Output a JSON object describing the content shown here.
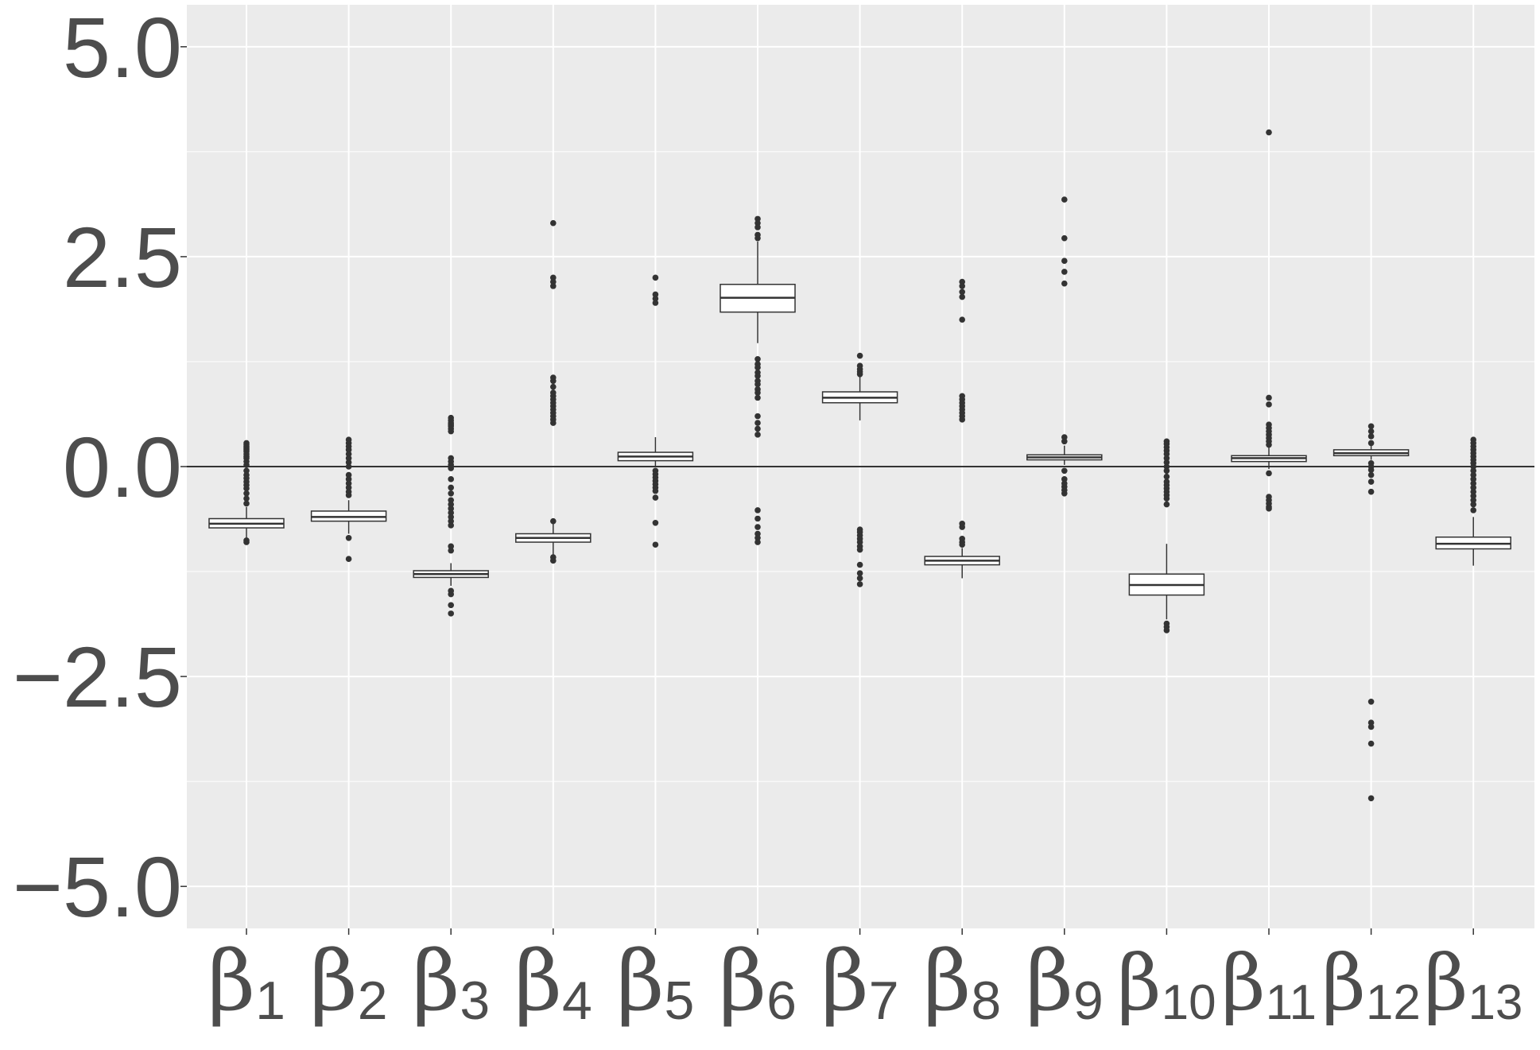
{
  "chart_data": {
    "type": "box",
    "title": "",
    "xlabel": "",
    "ylabel": "",
    "ylim": [
      -5.5,
      5.5
    ],
    "yticks": [
      5.0,
      2.5,
      0.0,
      -2.5,
      -5.0
    ],
    "ytick_labels": [
      "5.0",
      "2.5",
      "0.0",
      "−2.5",
      "−5.0"
    ],
    "hline": 0,
    "grid": true,
    "background": "#ebebeb",
    "grid_color": "#ffffff",
    "categories": [
      {
        "base": "β",
        "sub": "1"
      },
      {
        "base": "β",
        "sub": "2"
      },
      {
        "base": "β",
        "sub": "3"
      },
      {
        "base": "β",
        "sub": "4"
      },
      {
        "base": "β",
        "sub": "5"
      },
      {
        "base": "β",
        "sub": "6"
      },
      {
        "base": "β",
        "sub": "7"
      },
      {
        "base": "β",
        "sub": "8"
      },
      {
        "base": "β",
        "sub": "9"
      },
      {
        "base": "β",
        "sub": "10"
      },
      {
        "base": "β",
        "sub": "11"
      },
      {
        "base": "β",
        "sub": "12"
      },
      {
        "base": "β",
        "sub": "13"
      }
    ],
    "boxes": [
      {
        "q1": -0.73,
        "median": -0.68,
        "q3": -0.62,
        "whisker_low": -0.86,
        "whisker_high": -0.48,
        "outliers": [
          -0.9,
          -0.88,
          0.28,
          0.26,
          0.24,
          0.22,
          0.2,
          0.18,
          0.15,
          0.12,
          0.1,
          0.06,
          0.02,
          -0.05,
          -0.1,
          -0.14,
          -0.18,
          -0.22,
          -0.26,
          -0.32,
          -0.38,
          -0.44
        ]
      },
      {
        "q1": -0.65,
        "median": -0.6,
        "q3": -0.53,
        "whisker_low": -0.8,
        "whisker_high": -0.4,
        "outliers": [
          -0.85,
          -1.1,
          0.32,
          0.28,
          0.24,
          0.2,
          0.15,
          0.1,
          0.05,
          0.0,
          -0.1,
          -0.15,
          -0.2,
          -0.25,
          -0.3,
          -0.34
        ]
      },
      {
        "q1": -1.32,
        "median": -1.28,
        "q3": -1.24,
        "whisker_low": -1.42,
        "whisker_high": -1.15,
        "outliers": [
          0.58,
          0.55,
          0.52,
          0.5,
          0.48,
          0.45,
          0.42,
          0.1,
          0.06,
          0.02,
          -0.02,
          -0.15,
          -0.25,
          -0.32,
          -0.4,
          -0.45,
          -0.5,
          -0.55,
          -0.6,
          -0.65,
          -0.7,
          -0.95,
          -1.0,
          -1.48,
          -1.52,
          -1.65,
          -1.75
        ]
      },
      {
        "q1": -0.9,
        "median": -0.85,
        "q3": -0.8,
        "whisker_low": -1.05,
        "whisker_high": -0.68,
        "outliers": [
          2.9,
          2.25,
          2.2,
          2.15,
          1.06,
          1.02,
          0.95,
          0.88,
          0.84,
          0.8,
          0.76,
          0.72,
          0.68,
          0.64,
          0.6,
          0.56,
          0.52,
          -0.65,
          -1.08,
          -1.12
        ]
      },
      {
        "q1": 0.07,
        "median": 0.12,
        "q3": 0.17,
        "whisker_low": 0.0,
        "whisker_high": 0.35,
        "outliers": [
          2.25,
          2.05,
          2.0,
          1.95,
          -0.05,
          -0.09,
          -0.13,
          -0.17,
          -0.21,
          -0.25,
          -0.29,
          -0.37,
          -0.67,
          -0.93
        ]
      },
      {
        "q1": 1.84,
        "median": 2.01,
        "q3": 2.17,
        "whisker_low": 1.47,
        "whisker_high": 2.68,
        "outliers": [
          2.95,
          2.9,
          2.85,
          2.76,
          2.72,
          1.28,
          1.22,
          1.18,
          1.12,
          1.08,
          1.02,
          0.98,
          0.92,
          0.88,
          0.82,
          0.6,
          0.52,
          0.45,
          0.38,
          -0.52,
          -0.62,
          -0.72,
          -0.8,
          -0.85,
          -0.9
        ]
      },
      {
        "q1": 0.76,
        "median": 0.82,
        "q3": 0.89,
        "whisker_low": 0.55,
        "whisker_high": 1.08,
        "outliers": [
          1.32,
          1.2,
          1.16,
          1.13,
          1.1,
          -0.75,
          -0.78,
          -0.82,
          -0.86,
          -0.9,
          -0.95,
          -0.99,
          -1.17,
          -1.27,
          -1.33,
          -1.4
        ]
      },
      {
        "q1": -1.17,
        "median": -1.12,
        "q3": -1.07,
        "whisker_low": -1.33,
        "whisker_high": -0.97,
        "outliers": [
          2.2,
          2.15,
          2.08,
          2.02,
          1.75,
          0.84,
          0.8,
          0.76,
          0.72,
          0.68,
          0.64,
          0.6,
          0.56,
          -0.68,
          -0.72,
          -0.86,
          -0.9,
          -0.93
        ]
      },
      {
        "q1": 0.08,
        "median": 0.11,
        "q3": 0.14,
        "whisker_low": 0.02,
        "whisker_high": 0.25,
        "outliers": [
          3.18,
          2.72,
          2.45,
          2.32,
          2.18,
          0.35,
          0.3,
          -0.05,
          -0.15,
          -0.2,
          -0.24,
          -0.28,
          -0.32
        ]
      },
      {
        "q1": -1.53,
        "median": -1.41,
        "q3": -1.28,
        "whisker_low": -1.82,
        "whisker_high": -0.92,
        "outliers": [
          0.3,
          0.27,
          0.23,
          0.19,
          0.15,
          0.1,
          0.05,
          0.0,
          -0.05,
          -0.12,
          -0.18,
          -0.22,
          -0.26,
          -0.3,
          -0.34,
          -0.38,
          -0.45,
          -1.87,
          -1.91,
          -1.95
        ]
      },
      {
        "q1": 0.06,
        "median": 0.1,
        "q3": 0.13,
        "whisker_low": -0.03,
        "whisker_high": 0.24,
        "outliers": [
          3.98,
          0.82,
          0.74,
          0.5,
          0.46,
          0.42,
          0.38,
          0.34,
          0.3,
          0.26,
          -0.08,
          -0.36,
          -0.4,
          -0.44,
          -0.48,
          -0.5
        ]
      },
      {
        "q1": 0.13,
        "median": 0.16,
        "q3": 0.2,
        "whisker_low": 0.08,
        "whisker_high": 0.3,
        "outliers": [
          0.48,
          0.42,
          0.36,
          0.28,
          0.04,
          0.0,
          -0.04,
          -0.1,
          -0.18,
          -0.3,
          -2.8,
          -3.05,
          -3.1,
          -3.3,
          -3.95
        ]
      },
      {
        "q1": -0.98,
        "median": -0.92,
        "q3": -0.84,
        "whisker_low": -1.18,
        "whisker_high": -0.6,
        "outliers": [
          0.32,
          0.28,
          0.24,
          0.2,
          0.16,
          0.12,
          0.08,
          0.04,
          0.0,
          -0.05,
          -0.1,
          -0.15,
          -0.2,
          -0.25,
          -0.3,
          -0.35,
          -0.4,
          -0.45,
          -0.52
        ]
      }
    ]
  }
}
